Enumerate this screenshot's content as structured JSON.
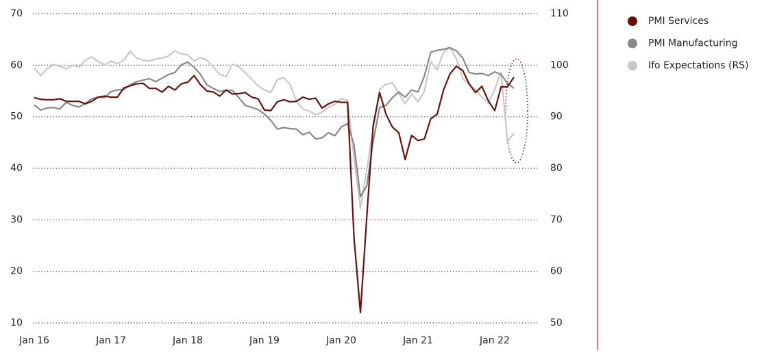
{
  "chart_data": {
    "type": "line",
    "categories": [
      "Jan 16",
      null,
      null,
      null,
      null,
      null,
      null,
      null,
      null,
      null,
      null,
      null,
      "Jan 17",
      null,
      null,
      null,
      null,
      null,
      null,
      null,
      null,
      null,
      null,
      null,
      "Jan 18",
      null,
      null,
      null,
      null,
      null,
      null,
      null,
      null,
      null,
      null,
      null,
      "Jan 19",
      null,
      null,
      null,
      null,
      null,
      null,
      null,
      null,
      null,
      null,
      null,
      "Jan 20",
      null,
      null,
      null,
      null,
      null,
      null,
      null,
      null,
      null,
      null,
      null,
      "Jan 21",
      null,
      null,
      null,
      null,
      null,
      null,
      null,
      null,
      null,
      null,
      null,
      "Jan 22",
      null,
      null,
      null
    ],
    "series": [
      {
        "name": "PMI Services",
        "color": "#6b1007",
        "values": [
          53.7,
          53.4,
          53.3,
          53.3,
          53.5,
          53.0,
          53.0,
          53.0,
          52.5,
          53.0,
          53.8,
          54.0,
          53.8,
          53.8,
          55.6,
          56.0,
          56.4,
          56.5,
          55.5,
          55.5,
          54.8,
          55.9,
          55.2,
          56.4,
          56.7,
          58.0,
          56.2,
          55.0,
          54.8,
          54.0,
          55.2,
          54.4,
          54.5,
          54.7,
          53.8,
          53.5,
          51.3,
          51.2,
          52.9,
          53.3,
          52.9,
          53.0,
          53.8,
          53.4,
          53.6,
          51.7,
          52.5,
          53.0,
          52.8,
          52.8,
          26.4,
          12.0,
          30.6,
          48.3,
          54.7,
          50.5,
          48.0,
          46.9,
          41.7,
          46.4,
          45.4,
          45.7,
          49.6,
          50.5,
          55.2,
          58.3,
          59.8,
          59.0,
          56.4,
          54.7,
          55.9,
          53.1,
          51.2,
          55.8,
          55.8,
          57.7
        ]
      },
      {
        "name": "PMI Manufacturing",
        "color": "#888888",
        "values": [
          52.3,
          51.3,
          51.7,
          51.8,
          51.5,
          52.8,
          52.2,
          51.9,
          52.6,
          53.5,
          53.8,
          53.7,
          54.9,
          55.2,
          55.3,
          56.2,
          56.8,
          57.1,
          57.4,
          56.8,
          57.5,
          58.2,
          58.6,
          60.1,
          60.6,
          59.6,
          58.2,
          56.2,
          55.5,
          54.9,
          55.1,
          55.1,
          53.7,
          52.2,
          51.8,
          51.4,
          50.5,
          49.3,
          47.6,
          47.9,
          47.7,
          47.6,
          46.5,
          47.0,
          45.7,
          45.9,
          46.9,
          46.3,
          48.0,
          48.7,
          44.5,
          34.5,
          36.6,
          45.2,
          51.8,
          52.2,
          53.7,
          54.8,
          53.8,
          55.2,
          54.8,
          57.9,
          62.5,
          62.9,
          63.1,
          63.4,
          62.8,
          61.4,
          58.6,
          58.3,
          58.4,
          58.0,
          58.7,
          58.2,
          56.5,
          55.5
        ]
      },
      {
        "name": "Ifo Expectations (RS)",
        "color": "#c8c8c8",
        "axis": "y2",
        "values": [
          99.5,
          98.0,
          99.3,
          100.2,
          99.8,
          99.3,
          100.0,
          99.6,
          101.0,
          101.6,
          100.7,
          100.1,
          100.8,
          100.3,
          101.0,
          102.7,
          101.4,
          101.0,
          100.8,
          101.2,
          101.4,
          101.8,
          102.8,
          102.2,
          102.0,
          100.8,
          101.5,
          101.0,
          99.7,
          98.2,
          97.8,
          100.2,
          99.7,
          98.5,
          97.3,
          96.0,
          95.2,
          94.7,
          97.2,
          97.6,
          96.3,
          93.0,
          91.5,
          91.1,
          90.4,
          90.9,
          91.9,
          92.4,
          93.5,
          93.2,
          82.0,
          72.2,
          79.8,
          87.6,
          95.3,
          96.3,
          96.6,
          94.6,
          92.5,
          94.4,
          92.9,
          95.0,
          100.7,
          99.1,
          102.5,
          103.4,
          101.3,
          97.4,
          96.2,
          95.3,
          93.8,
          92.6,
          95.3,
          98.6,
          85.2,
          86.8
        ]
      }
    ],
    "ylim": [
      10,
      70
    ],
    "yticks": [
      10,
      20,
      30,
      40,
      50,
      60,
      70
    ],
    "y2lim": [
      50,
      110
    ],
    "y2ticks": [
      50,
      60,
      70,
      80,
      90,
      100,
      110
    ],
    "grid": true,
    "legend": "right"
  }
}
